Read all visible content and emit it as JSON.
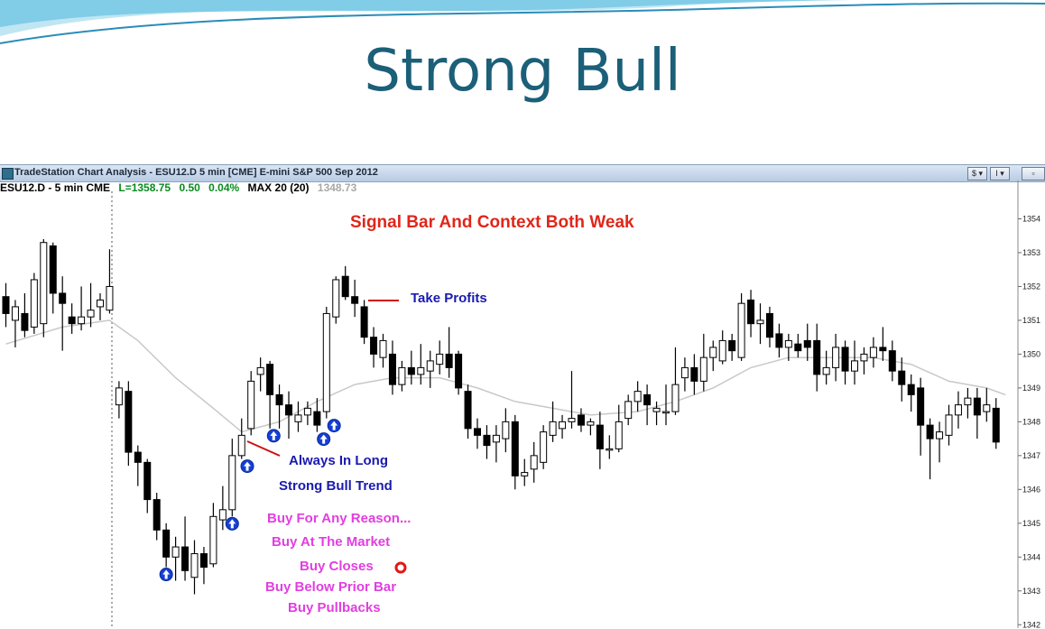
{
  "slide": {
    "title": "Strong Bull"
  },
  "window": {
    "title": "TradeStation Chart Analysis - ESU12.D 5 min [CME] E-mini S&P 500 Sep 2012",
    "buttons": [
      "$ ▾",
      "I ▾"
    ]
  },
  "infobar": {
    "symbol": "ESU12.D - 5 min  CME",
    "last": "L=1358.75",
    "change": "0.50",
    "pct": "0.04%",
    "ma": "MAX 20 (20)",
    "ma_value": "1348.73"
  },
  "annotations": {
    "signal": "Signal Bar And Context Both Weak",
    "take_profits": "Take Profits",
    "always_in_long": "Always In Long",
    "strong_bull_trend": "Strong Bull Trend",
    "buy_lines": [
      "Buy For Any Reason...",
      "Buy At The Market",
      "Buy Closes",
      "Buy Below Prior Bar",
      "Buy Pullbacks"
    ]
  },
  "colors": {
    "title": "#1b5f78",
    "signal": "#e0261a",
    "blue_text": "#1a1ab0",
    "pink_text": "#e23ee0",
    "bear_candle": "#000000",
    "bull_candle": "#ffffff",
    "moving_average": "#c8c8c8"
  },
  "chart_data": {
    "type": "candlestick",
    "title": "",
    "ylim": [
      1341.9,
      1354.6
    ],
    "y_ticks": [
      1354,
      1353,
      1352,
      1351,
      1350,
      1349,
      1348,
      1347,
      1346,
      1345,
      1344,
      1343,
      1342
    ],
    "candles": [
      {
        "o": 1351.7,
        "h": 1352.1,
        "l": 1350.8,
        "c": 1351.2
      },
      {
        "o": 1351.0,
        "h": 1351.6,
        "l": 1350.2,
        "c": 1351.4
      },
      {
        "o": 1351.2,
        "h": 1351.8,
        "l": 1350.5,
        "c": 1350.7
      },
      {
        "o": 1350.8,
        "h": 1352.4,
        "l": 1350.6,
        "c": 1352.2
      },
      {
        "o": 1350.9,
        "h": 1353.4,
        "l": 1350.5,
        "c": 1353.3
      },
      {
        "o": 1353.2,
        "h": 1353.3,
        "l": 1351.2,
        "c": 1351.8
      },
      {
        "o": 1351.8,
        "h": 1352.3,
        "l": 1350.1,
        "c": 1351.5
      },
      {
        "o": 1351.1,
        "h": 1351.5,
        "l": 1350.6,
        "c": 1350.9
      },
      {
        "o": 1350.9,
        "h": 1352.0,
        "l": 1350.7,
        "c": 1351.1
      },
      {
        "o": 1351.1,
        "h": 1352.1,
        "l": 1350.8,
        "c": 1351.3
      },
      {
        "o": 1351.4,
        "h": 1351.8,
        "l": 1351.0,
        "c": 1351.6
      },
      {
        "o": 1351.3,
        "h": 1353.1,
        "l": 1351.2,
        "c": 1352.0
      },
      {
        "o": 1348.5,
        "h": 1349.2,
        "l": 1348.1,
        "c": 1349.0
      },
      {
        "o": 1348.9,
        "h": 1349.2,
        "l": 1346.7,
        "c": 1347.1
      },
      {
        "o": 1347.1,
        "h": 1347.3,
        "l": 1346.1,
        "c": 1346.8
      },
      {
        "o": 1346.8,
        "h": 1346.9,
        "l": 1345.3,
        "c": 1345.7
      },
      {
        "o": 1345.7,
        "h": 1345.9,
        "l": 1344.5,
        "c": 1344.8
      },
      {
        "o": 1344.8,
        "h": 1345.0,
        "l": 1343.7,
        "c": 1344.0
      },
      {
        "o": 1344.0,
        "h": 1344.6,
        "l": 1343.3,
        "c": 1344.3
      },
      {
        "o": 1344.3,
        "h": 1345.2,
        "l": 1343.3,
        "c": 1343.6
      },
      {
        "o": 1343.4,
        "h": 1344.5,
        "l": 1342.9,
        "c": 1344.1
      },
      {
        "o": 1344.1,
        "h": 1344.3,
        "l": 1343.2,
        "c": 1343.7
      },
      {
        "o": 1343.8,
        "h": 1345.6,
        "l": 1343.7,
        "c": 1345.2
      },
      {
        "o": 1345.1,
        "h": 1346.1,
        "l": 1344.8,
        "c": 1345.4
      },
      {
        "o": 1345.4,
        "h": 1347.5,
        "l": 1345.2,
        "c": 1347.0
      },
      {
        "o": 1347.0,
        "h": 1348.1,
        "l": 1346.9,
        "c": 1347.6
      },
      {
        "o": 1347.8,
        "h": 1349.5,
        "l": 1347.6,
        "c": 1349.2
      },
      {
        "o": 1349.4,
        "h": 1349.9,
        "l": 1348.9,
        "c": 1349.6
      },
      {
        "o": 1349.7,
        "h": 1349.8,
        "l": 1347.8,
        "c": 1348.8
      },
      {
        "o": 1348.8,
        "h": 1349.1,
        "l": 1347.8,
        "c": 1348.5
      },
      {
        "o": 1348.5,
        "h": 1348.9,
        "l": 1347.5,
        "c": 1348.2
      },
      {
        "o": 1348.0,
        "h": 1348.6,
        "l": 1347.7,
        "c": 1348.2
      },
      {
        "o": 1348.2,
        "h": 1348.6,
        "l": 1347.9,
        "c": 1348.4
      },
      {
        "o": 1348.3,
        "h": 1348.7,
        "l": 1347.7,
        "c": 1347.9
      },
      {
        "o": 1348.3,
        "h": 1351.4,
        "l": 1348.1,
        "c": 1351.2
      },
      {
        "o": 1351.1,
        "h": 1352.3,
        "l": 1350.9,
        "c": 1352.2
      },
      {
        "o": 1352.3,
        "h": 1352.6,
        "l": 1351.6,
        "c": 1351.7
      },
      {
        "o": 1351.7,
        "h": 1352.2,
        "l": 1351.1,
        "c": 1351.5
      },
      {
        "o": 1351.4,
        "h": 1351.6,
        "l": 1350.3,
        "c": 1350.5
      },
      {
        "o": 1350.5,
        "h": 1350.8,
        "l": 1349.6,
        "c": 1350.0
      },
      {
        "o": 1349.9,
        "h": 1350.6,
        "l": 1349.6,
        "c": 1350.4
      },
      {
        "o": 1350.0,
        "h": 1350.4,
        "l": 1348.8,
        "c": 1349.1
      },
      {
        "o": 1349.1,
        "h": 1349.8,
        "l": 1348.9,
        "c": 1349.6
      },
      {
        "o": 1349.6,
        "h": 1350.1,
        "l": 1349.1,
        "c": 1349.4
      },
      {
        "o": 1349.4,
        "h": 1350.3,
        "l": 1349.1,
        "c": 1349.6
      },
      {
        "o": 1349.5,
        "h": 1350.1,
        "l": 1349.0,
        "c": 1349.8
      },
      {
        "o": 1349.7,
        "h": 1350.4,
        "l": 1349.4,
        "c": 1350.0
      },
      {
        "o": 1350.0,
        "h": 1350.8,
        "l": 1349.3,
        "c": 1349.6
      },
      {
        "o": 1350.0,
        "h": 1350.1,
        "l": 1348.8,
        "c": 1349.0
      },
      {
        "o": 1348.9,
        "h": 1349.1,
        "l": 1347.5,
        "c": 1347.8
      },
      {
        "o": 1347.8,
        "h": 1348.1,
        "l": 1347.2,
        "c": 1347.6
      },
      {
        "o": 1347.6,
        "h": 1347.9,
        "l": 1346.9,
        "c": 1347.3
      },
      {
        "o": 1347.4,
        "h": 1347.9,
        "l": 1346.8,
        "c": 1347.6
      },
      {
        "o": 1347.5,
        "h": 1348.4,
        "l": 1347.1,
        "c": 1348.0
      },
      {
        "o": 1348.0,
        "h": 1348.2,
        "l": 1346.0,
        "c": 1346.4
      },
      {
        "o": 1346.4,
        "h": 1346.9,
        "l": 1346.1,
        "c": 1346.5
      },
      {
        "o": 1346.6,
        "h": 1347.4,
        "l": 1346.2,
        "c": 1347.0
      },
      {
        "o": 1346.8,
        "h": 1347.9,
        "l": 1346.6,
        "c": 1347.7
      },
      {
        "o": 1347.6,
        "h": 1348.6,
        "l": 1347.4,
        "c": 1348.0
      },
      {
        "o": 1347.8,
        "h": 1348.2,
        "l": 1347.5,
        "c": 1348.0
      },
      {
        "o": 1348.0,
        "h": 1349.5,
        "l": 1347.8,
        "c": 1348.1
      },
      {
        "o": 1348.2,
        "h": 1348.4,
        "l": 1347.7,
        "c": 1347.9
      },
      {
        "o": 1347.9,
        "h": 1348.1,
        "l": 1347.6,
        "c": 1348.0
      },
      {
        "o": 1347.9,
        "h": 1348.3,
        "l": 1346.6,
        "c": 1347.2
      },
      {
        "o": 1347.2,
        "h": 1347.6,
        "l": 1346.9,
        "c": 1347.2
      },
      {
        "o": 1347.2,
        "h": 1348.5,
        "l": 1347.1,
        "c": 1348.0
      },
      {
        "o": 1348.1,
        "h": 1348.8,
        "l": 1347.9,
        "c": 1348.6
      },
      {
        "o": 1348.6,
        "h": 1349.2,
        "l": 1348.3,
        "c": 1348.9
      },
      {
        "o": 1348.8,
        "h": 1349.1,
        "l": 1347.9,
        "c": 1348.5
      },
      {
        "o": 1348.3,
        "h": 1348.6,
        "l": 1347.9,
        "c": 1348.4
      },
      {
        "o": 1348.3,
        "h": 1349.1,
        "l": 1347.9,
        "c": 1348.3
      },
      {
        "o": 1348.3,
        "h": 1350.2,
        "l": 1348.2,
        "c": 1349.1
      },
      {
        "o": 1349.3,
        "h": 1349.9,
        "l": 1348.9,
        "c": 1349.6
      },
      {
        "o": 1349.6,
        "h": 1350.0,
        "l": 1348.8,
        "c": 1349.2
      },
      {
        "o": 1349.2,
        "h": 1350.6,
        "l": 1348.9,
        "c": 1349.9
      },
      {
        "o": 1349.9,
        "h": 1350.4,
        "l": 1349.5,
        "c": 1350.2
      },
      {
        "o": 1349.8,
        "h": 1350.7,
        "l": 1349.7,
        "c": 1350.4
      },
      {
        "o": 1350.4,
        "h": 1350.6,
        "l": 1349.8,
        "c": 1350.1
      },
      {
        "o": 1349.9,
        "h": 1351.8,
        "l": 1349.8,
        "c": 1351.5
      },
      {
        "o": 1351.6,
        "h": 1351.9,
        "l": 1350.5,
        "c": 1350.9
      },
      {
        "o": 1350.9,
        "h": 1351.5,
        "l": 1350.3,
        "c": 1351.0
      },
      {
        "o": 1351.2,
        "h": 1351.4,
        "l": 1350.2,
        "c": 1350.5
      },
      {
        "o": 1350.6,
        "h": 1350.9,
        "l": 1349.9,
        "c": 1350.2
      },
      {
        "o": 1350.2,
        "h": 1350.6,
        "l": 1349.8,
        "c": 1350.4
      },
      {
        "o": 1350.3,
        "h": 1350.6,
        "l": 1349.9,
        "c": 1350.1
      },
      {
        "o": 1350.4,
        "h": 1350.9,
        "l": 1349.8,
        "c": 1350.2
      },
      {
        "o": 1350.4,
        "h": 1350.9,
        "l": 1348.9,
        "c": 1349.4
      },
      {
        "o": 1349.4,
        "h": 1350.1,
        "l": 1349.1,
        "c": 1349.6
      },
      {
        "o": 1349.6,
        "h": 1350.6,
        "l": 1349.2,
        "c": 1350.2
      },
      {
        "o": 1350.2,
        "h": 1350.4,
        "l": 1349.1,
        "c": 1349.5
      },
      {
        "o": 1349.5,
        "h": 1350.4,
        "l": 1349.1,
        "c": 1349.8
      },
      {
        "o": 1349.8,
        "h": 1350.2,
        "l": 1349.4,
        "c": 1350.0
      },
      {
        "o": 1349.9,
        "h": 1350.5,
        "l": 1349.6,
        "c": 1350.2
      },
      {
        "o": 1350.2,
        "h": 1350.8,
        "l": 1349.8,
        "c": 1350.1
      },
      {
        "o": 1350.1,
        "h": 1350.4,
        "l": 1349.2,
        "c": 1349.5
      },
      {
        "o": 1349.5,
        "h": 1349.9,
        "l": 1348.6,
        "c": 1349.1
      },
      {
        "o": 1349.1,
        "h": 1349.4,
        "l": 1348.3,
        "c": 1348.8
      },
      {
        "o": 1349.0,
        "h": 1349.3,
        "l": 1347.0,
        "c": 1347.9
      },
      {
        "o": 1347.9,
        "h": 1348.1,
        "l": 1346.3,
        "c": 1347.5
      },
      {
        "o": 1347.5,
        "h": 1348.0,
        "l": 1346.8,
        "c": 1347.7
      },
      {
        "o": 1347.6,
        "h": 1348.5,
        "l": 1347.3,
        "c": 1348.2
      },
      {
        "o": 1348.2,
        "h": 1348.9,
        "l": 1347.8,
        "c": 1348.5
      },
      {
        "o": 1348.5,
        "h": 1349.0,
        "l": 1348.1,
        "c": 1348.7
      },
      {
        "o": 1348.7,
        "h": 1349.0,
        "l": 1347.5,
        "c": 1348.2
      },
      {
        "o": 1348.3,
        "h": 1349.0,
        "l": 1348.0,
        "c": 1348.5
      },
      {
        "o": 1348.4,
        "h": 1348.7,
        "l": 1347.2,
        "c": 1347.4
      }
    ],
    "moving_average": [
      [
        0,
        1350.3
      ],
      [
        6,
        1350.8
      ],
      [
        11,
        1351.0
      ],
      [
        14,
        1350.4
      ],
      [
        18,
        1349.3
      ],
      [
        22,
        1348.4
      ],
      [
        25,
        1347.7
      ],
      [
        29,
        1348.0
      ],
      [
        33,
        1348.6
      ],
      [
        37,
        1349.1
      ],
      [
        41,
        1349.3
      ],
      [
        46,
        1349.3
      ],
      [
        50,
        1349.0
      ],
      [
        54,
        1348.6
      ],
      [
        58,
        1348.4
      ],
      [
        62,
        1348.2
      ],
      [
        67,
        1348.3
      ],
      [
        71,
        1348.6
      ],
      [
        75,
        1349.0
      ],
      [
        79,
        1349.6
      ],
      [
        83,
        1349.9
      ],
      [
        88,
        1349.9
      ],
      [
        92,
        1349.9
      ],
      [
        96,
        1349.7
      ],
      [
        100,
        1349.2
      ],
      [
        104,
        1349.0
      ],
      [
        106,
        1348.8
      ]
    ],
    "signal_markers": [
      17.0,
      24.0,
      25.6,
      28.4,
      33.7,
      34.8
    ]
  }
}
